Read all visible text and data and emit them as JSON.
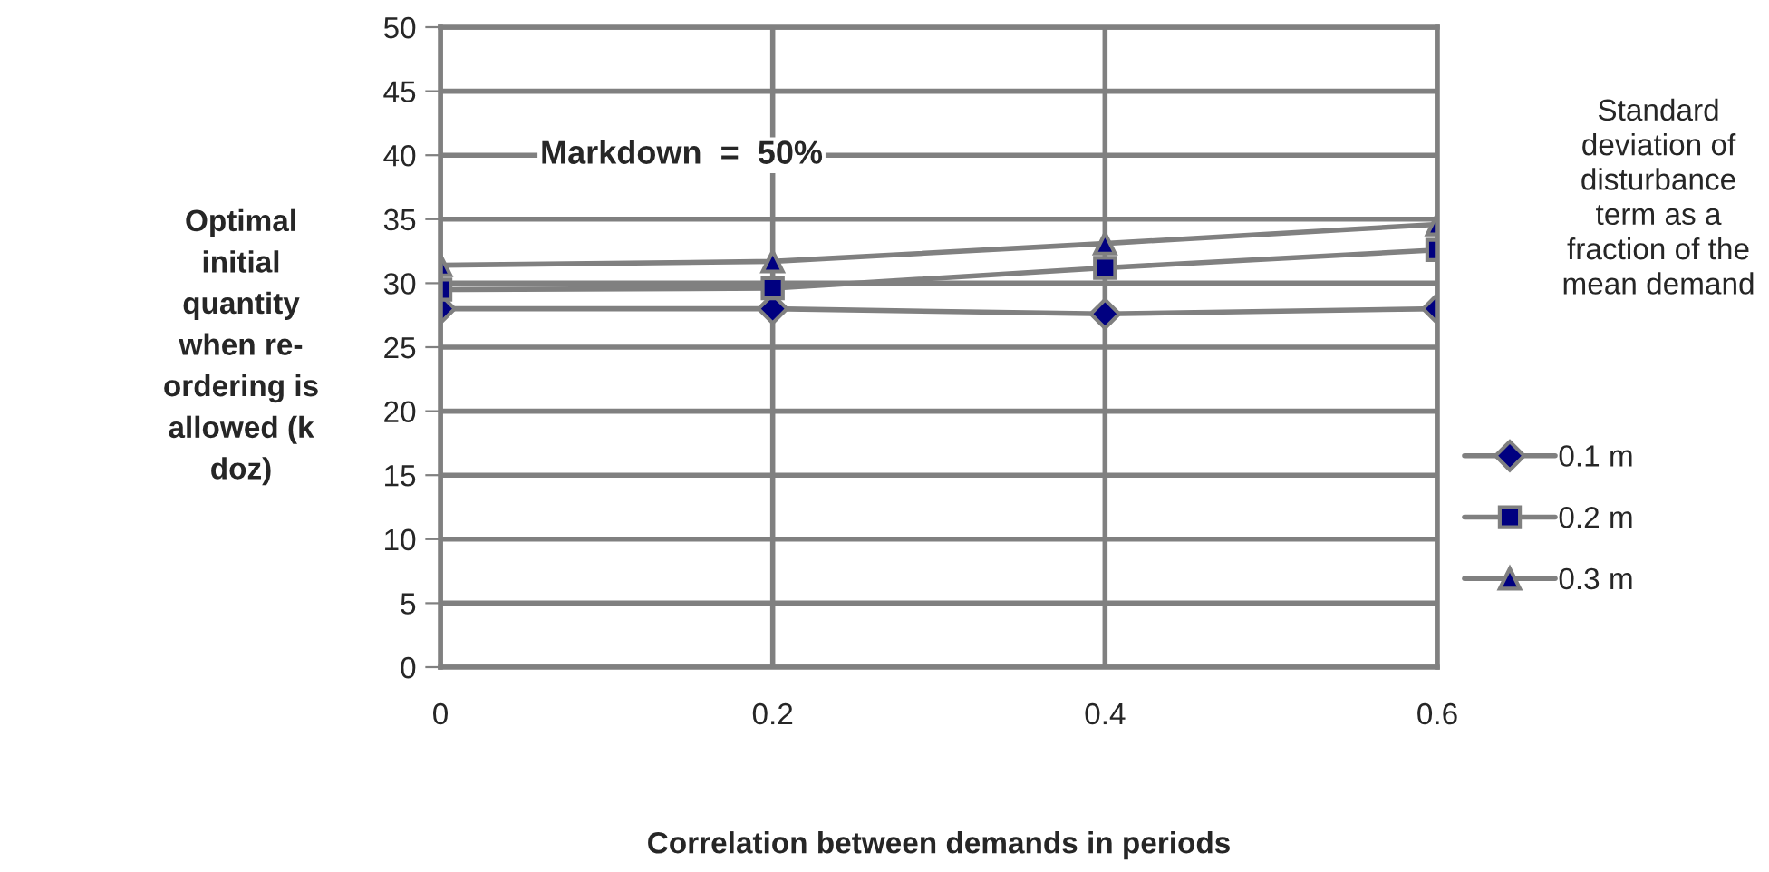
{
  "chart_data": {
    "type": "line",
    "xlabel": "Correlation between demands in periods",
    "ylabel": "Optimal\ninitial\nquantity\nwhen re-\nordering is\nallowed (k\ndoz)",
    "legend_title": "Standard\ndeviation of\ndisturbance\nterm as a\nfraction of the\nmean demand",
    "annotations": [
      "Markdown  =  50%"
    ],
    "x": [
      0,
      0.2,
      0.4,
      0.6
    ],
    "series": [
      {
        "name": "0.1 m",
        "color": "#000080",
        "marker": "diamond",
        "values": [
          28.0,
          28.0,
          27.6,
          28.0
        ]
      },
      {
        "name": "0.2 m",
        "color": "#000080",
        "marker": "square",
        "values": [
          29.5,
          29.6,
          31.2,
          32.6
        ]
      },
      {
        "name": "0.3 m",
        "color": "#000080",
        "marker": "triangle",
        "values": [
          31.4,
          31.7,
          33.1,
          34.6
        ]
      }
    ],
    "xlim": [
      0,
      0.6
    ],
    "xticks": [
      0,
      0.2,
      0.4,
      0.6
    ],
    "ylim": [
      0,
      50
    ],
    "yticks": [
      0,
      5,
      10,
      15,
      20,
      25,
      30,
      35,
      40,
      45,
      50
    ],
    "grid": true,
    "legend": "right",
    "line_style": "solid"
  }
}
